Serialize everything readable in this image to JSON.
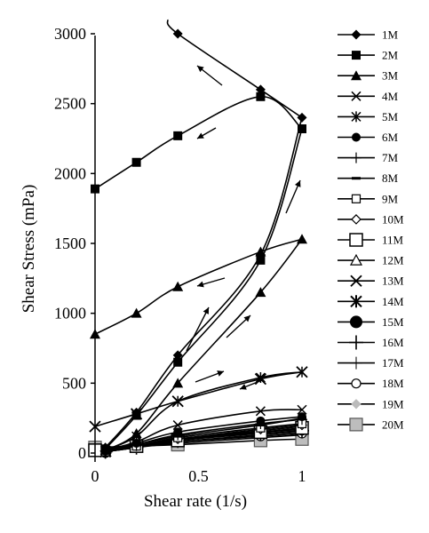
{
  "chart_data": {
    "type": "line",
    "title": "",
    "xlabel": "Shear rate (1/s)",
    "ylabel": "Shear Stress (mPa)",
    "xlim": [
      0,
      1
    ],
    "ylim": [
      0,
      3000
    ],
    "xticks": [
      0,
      0.5,
      1
    ],
    "xtick_labels": [
      "0",
      "0.5",
      "1"
    ],
    "yticks": [
      0,
      500,
      1000,
      1500,
      2000,
      2500,
      3000
    ],
    "ytick_labels": [
      "0",
      "500",
      "1000",
      "1500",
      "2000",
      "2500",
      "3000"
    ],
    "grid": false,
    "legend_position": "right",
    "series": [
      {
        "name": "1M",
        "marker": "diamond",
        "up": [
          [
            0.05,
            40
          ],
          [
            0.2,
            290
          ],
          [
            0.4,
            700
          ],
          [
            0.8,
            1420
          ],
          [
            1,
            2400
          ]
        ],
        "down": [
          [
            1,
            2400
          ],
          [
            0.8,
            2600
          ],
          [
            0.4,
            3000
          ],
          [
            0.35,
            3100
          ]
        ]
      },
      {
        "name": "2M",
        "marker": "square",
        "up": [
          [
            0.05,
            30
          ],
          [
            0.2,
            270
          ],
          [
            0.4,
            650
          ],
          [
            0.8,
            1380
          ],
          [
            1,
            2320
          ]
        ],
        "down": [
          [
            1,
            2320
          ],
          [
            0.8,
            2550
          ],
          [
            0.4,
            2270
          ],
          [
            0.2,
            2080
          ],
          [
            0,
            1890
          ]
        ]
      },
      {
        "name": "3M",
        "marker": "triangle",
        "up": [
          [
            0.05,
            20
          ],
          [
            0.2,
            140
          ],
          [
            0.4,
            500
          ],
          [
            0.8,
            1150
          ],
          [
            1,
            1530
          ]
        ],
        "down": [
          [
            1,
            1530
          ],
          [
            0.8,
            1440
          ],
          [
            0.4,
            1190
          ],
          [
            0.2,
            1000
          ],
          [
            0,
            850
          ]
        ]
      },
      {
        "name": "4M",
        "marker": "x",
        "up": [
          [
            0.05,
            20
          ],
          [
            0.2,
            80
          ],
          [
            0.4,
            200
          ],
          [
            0.8,
            300
          ],
          [
            1,
            310
          ]
        ],
        "down": []
      },
      {
        "name": "5M",
        "marker": "star",
        "up": [
          [
            0.05,
            20
          ],
          [
            0.2,
            120
          ],
          [
            0.4,
            370
          ],
          [
            0.8,
            540
          ],
          [
            1,
            580
          ]
        ],
        "down": []
      },
      {
        "name": "6M",
        "marker": "circle",
        "up": [
          [
            0.05,
            15
          ],
          [
            0.2,
            70
          ],
          [
            0.4,
            150
          ],
          [
            0.8,
            230
          ],
          [
            1,
            260
          ]
        ],
        "down": []
      },
      {
        "name": "7M",
        "marker": "plus",
        "up": [
          [
            0.05,
            15
          ],
          [
            0.2,
            60
          ],
          [
            0.4,
            130
          ],
          [
            0.8,
            210
          ],
          [
            1,
            240
          ]
        ],
        "down": []
      },
      {
        "name": "8M",
        "marker": "dash",
        "up": [
          [
            0.05,
            15
          ],
          [
            0.2,
            60
          ],
          [
            0.4,
            120
          ],
          [
            0.8,
            200
          ],
          [
            1,
            250
          ]
        ],
        "down": []
      },
      {
        "name": "9M",
        "marker": "square-open",
        "up": [
          [
            0.05,
            10
          ],
          [
            0.2,
            50
          ],
          [
            0.4,
            110
          ],
          [
            0.8,
            180
          ],
          [
            1,
            210
          ]
        ],
        "down": []
      },
      {
        "name": "10M",
        "marker": "diamond-open",
        "up": [
          [
            0.05,
            10
          ],
          [
            0.2,
            50
          ],
          [
            0.4,
            100
          ],
          [
            0.8,
            170
          ],
          [
            1,
            200
          ]
        ],
        "down": []
      },
      {
        "name": "11M",
        "marker": "square-open-large",
        "up": [
          [
            0,
            20
          ],
          [
            0.2,
            50
          ],
          [
            0.4,
            90
          ],
          [
            0.8,
            150
          ],
          [
            1,
            180
          ]
        ],
        "down": []
      },
      {
        "name": "12M",
        "marker": "triangle-open",
        "up": [
          [
            0.05,
            10
          ],
          [
            0.2,
            40
          ],
          [
            0.4,
            90
          ],
          [
            0.8,
            150
          ],
          [
            1,
            170
          ]
        ],
        "down": []
      },
      {
        "name": "13M",
        "marker": "x-large",
        "up": [
          [
            0,
            190
          ],
          [
            0.2,
            280
          ],
          [
            0.4,
            370
          ],
          [
            0.8,
            530
          ],
          [
            1,
            580
          ]
        ],
        "down": []
      },
      {
        "name": "14M",
        "marker": "star-large",
        "up": [
          [
            0.05,
            10
          ],
          [
            0.2,
            50
          ],
          [
            0.4,
            100
          ],
          [
            0.8,
            160
          ],
          [
            1,
            190
          ]
        ],
        "down": []
      },
      {
        "name": "15M",
        "marker": "circle-large",
        "up": [
          [
            0.05,
            10
          ],
          [
            0.2,
            50
          ],
          [
            0.4,
            100
          ],
          [
            0.8,
            150
          ],
          [
            1,
            170
          ]
        ],
        "down": []
      },
      {
        "name": "16M",
        "marker": "plus-large",
        "up": [
          [
            0.05,
            10
          ],
          [
            0.2,
            40
          ],
          [
            0.4,
            90
          ],
          [
            0.8,
            140
          ],
          [
            1,
            160
          ]
        ],
        "down": []
      },
      {
        "name": "17M",
        "marker": "plus-thin",
        "up": [
          [
            0.05,
            10
          ],
          [
            0.2,
            40
          ],
          [
            0.4,
            80
          ],
          [
            0.8,
            130
          ],
          [
            1,
            150
          ]
        ],
        "down": []
      },
      {
        "name": "18M",
        "marker": "circle-open",
        "up": [
          [
            0.05,
            10
          ],
          [
            0.2,
            40
          ],
          [
            0.4,
            80
          ],
          [
            0.8,
            120
          ],
          [
            1,
            140
          ]
        ],
        "down": []
      },
      {
        "name": "19M",
        "marker": "diamond-gray",
        "up": [
          [
            0.05,
            10
          ],
          [
            0.2,
            40
          ],
          [
            0.4,
            70
          ],
          [
            0.8,
            110
          ],
          [
            1,
            130
          ]
        ],
        "down": []
      },
      {
        "name": "20M",
        "marker": "square-gray",
        "up": [
          [
            0,
            40
          ],
          [
            0.2,
            50
          ],
          [
            0.4,
            60
          ],
          [
            0.8,
            90
          ],
          [
            1,
            100
          ]
        ],
        "down": []
      }
    ]
  }
}
